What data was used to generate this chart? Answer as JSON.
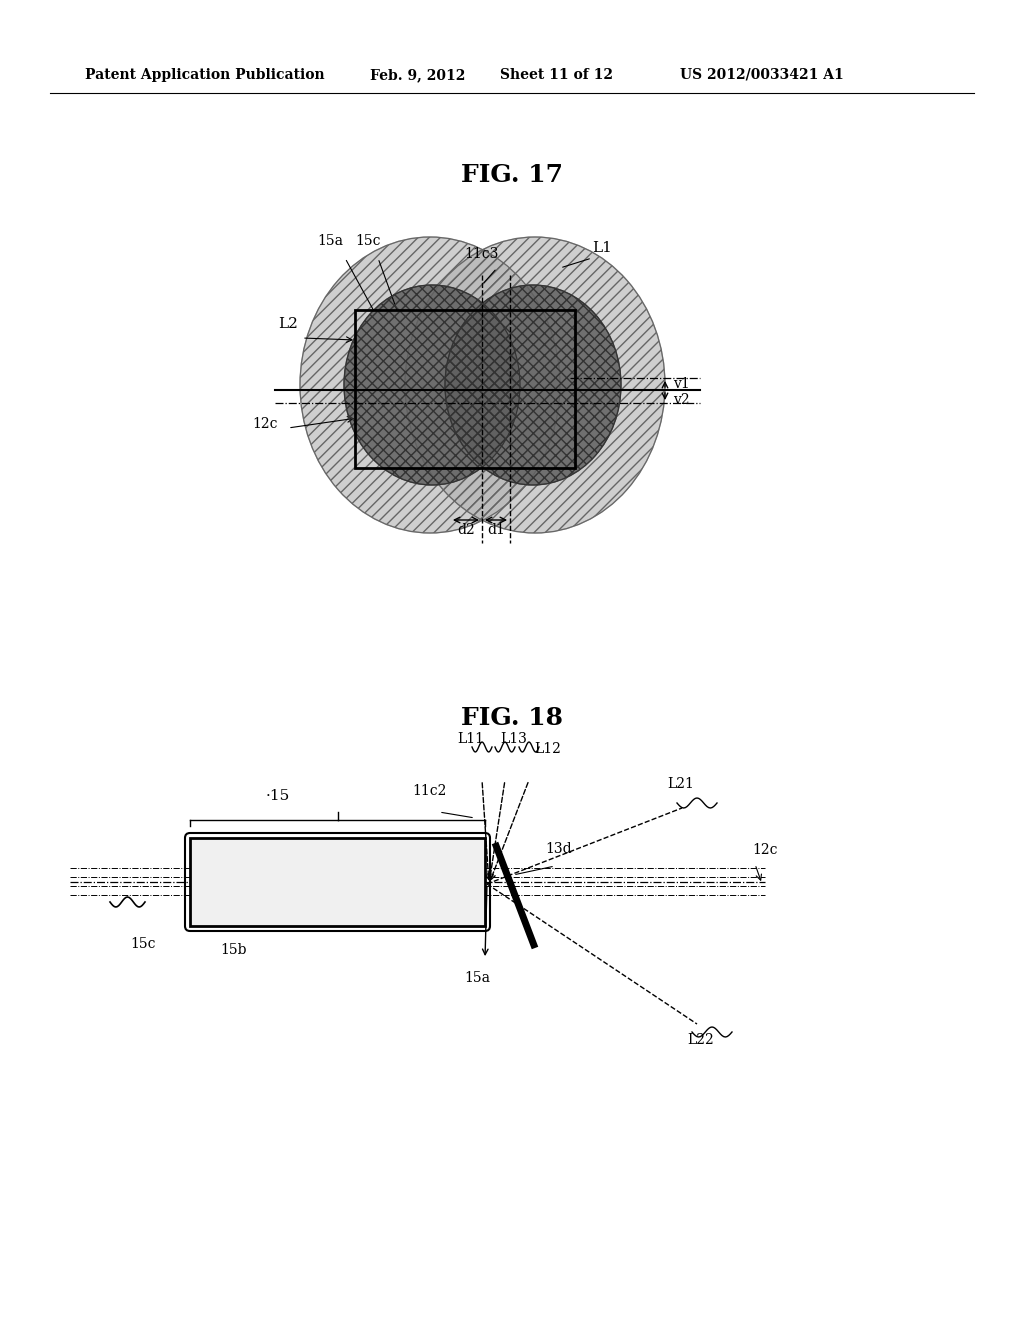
{
  "bg_color": "#ffffff",
  "header_text": "Patent Application Publication",
  "header_date": "Feb. 9, 2012",
  "header_sheet": "Sheet 11 of 12",
  "header_patent": "US 2012/0033421 A1",
  "fig17_title": "FIG. 17",
  "fig18_title": "FIG. 18",
  "text_color": "#000000"
}
